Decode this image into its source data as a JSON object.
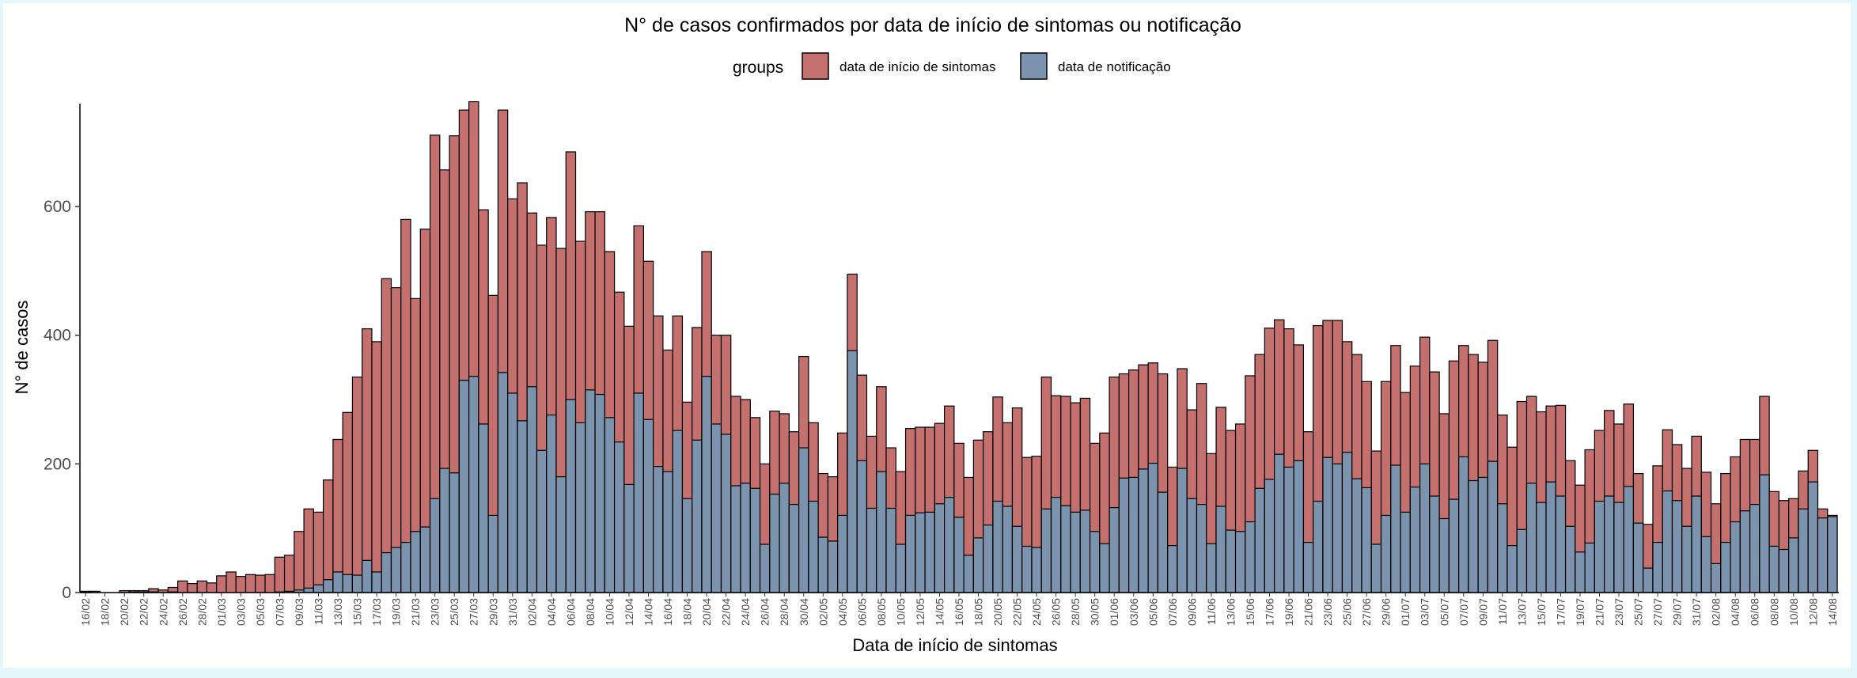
{
  "chart_data": {
    "type": "bar",
    "stacked": true,
    "title": "N° de casos confirmados por data de início de sintomas ou notificação",
    "xlabel": "Data de início de sintomas",
    "ylabel": "N° de casos",
    "ylim": [
      0,
      760
    ],
    "yticks": [
      0,
      200,
      400,
      600
    ],
    "grid": false,
    "legend": {
      "title": "groups",
      "position": "top",
      "entries": [
        {
          "label": "data de início de sintomas",
          "color": "#c3706f"
        },
        {
          "label": "data de notificação",
          "color": "#7b93ad"
        }
      ]
    },
    "start_date": "16/02",
    "categories": [
      "16/02",
      "17/02",
      "18/02",
      "19/02",
      "20/02",
      "21/02",
      "22/02",
      "23/02",
      "24/02",
      "25/02",
      "26/02",
      "27/02",
      "28/02",
      "29/02",
      "01/03",
      "02/03",
      "03/03",
      "04/03",
      "05/03",
      "06/03",
      "07/03",
      "08/03",
      "09/03",
      "10/03",
      "11/03",
      "12/03",
      "13/03",
      "14/03",
      "15/03",
      "16/03",
      "17/03",
      "18/03",
      "19/03",
      "20/03",
      "21/03",
      "22/03",
      "23/03",
      "24/03",
      "25/03",
      "26/03",
      "27/03",
      "28/03",
      "29/03",
      "30/03",
      "31/03",
      "01/04",
      "02/04",
      "03/04",
      "04/04",
      "05/04",
      "06/04",
      "07/04",
      "08/04",
      "09/04",
      "10/04",
      "11/04",
      "12/04",
      "13/04",
      "14/04",
      "15/04",
      "16/04",
      "17/04",
      "18/04",
      "19/04",
      "20/04",
      "21/04",
      "22/04",
      "23/04",
      "24/04",
      "25/04",
      "26/04",
      "27/04",
      "28/04",
      "29/04",
      "30/04",
      "01/05",
      "02/05",
      "03/05",
      "04/05",
      "05/05",
      "06/05",
      "07/05",
      "08/05",
      "09/05",
      "10/05",
      "11/05",
      "12/05",
      "13/05",
      "14/05",
      "15/05",
      "16/05",
      "17/05",
      "18/05",
      "19/05",
      "20/05",
      "21/05",
      "22/05",
      "23/05",
      "24/05",
      "25/05",
      "26/05",
      "27/05",
      "28/05",
      "29/05",
      "30/05",
      "31/05",
      "01/06",
      "02/06",
      "03/06",
      "04/06",
      "05/06",
      "06/06",
      "07/06",
      "08/06",
      "09/06",
      "10/06",
      "11/06",
      "12/06",
      "13/06",
      "14/06",
      "15/06",
      "16/06",
      "17/06",
      "18/06",
      "19/06",
      "20/06",
      "21/06",
      "22/06",
      "23/06",
      "24/06",
      "25/06",
      "26/06",
      "27/06",
      "28/06",
      "29/06",
      "30/06",
      "01/07",
      "02/07",
      "03/07",
      "04/07",
      "05/07",
      "06/07",
      "07/07",
      "08/07",
      "09/07",
      "10/07",
      "11/07",
      "12/07",
      "13/07",
      "14/07",
      "15/07",
      "16/07",
      "17/07",
      "18/07",
      "19/07",
      "20/07",
      "21/07",
      "22/07",
      "23/07",
      "24/07",
      "25/07",
      "26/07",
      "27/07",
      "28/07",
      "29/07",
      "30/07",
      "31/07",
      "01/08",
      "02/08",
      "03/08",
      "04/08",
      "05/08",
      "06/08",
      "07/08",
      "08/08",
      "09/08",
      "10/08",
      "11/08",
      "12/08",
      "13/08",
      "14/08"
    ],
    "series": [
      {
        "name": "data de início de sintomas",
        "color": "#c3706f",
        "values": [
          2,
          2,
          0,
          0,
          3,
          3,
          3,
          6,
          4,
          8,
          18,
          14,
          18,
          15,
          26,
          32,
          25,
          28,
          27,
          28,
          55,
          58,
          95,
          130,
          125,
          175,
          238,
          280,
          335,
          410,
          390,
          488,
          474,
          580,
          457,
          565,
          711,
          657,
          710,
          750,
          763,
          595,
          462,
          750,
          612,
          637,
          590,
          540,
          583,
          535,
          685,
          546,
          592,
          592,
          530,
          467,
          414,
          570,
          515,
          430,
          377,
          430,
          296,
          412,
          530,
          400,
          400,
          305,
          300,
          272,
          200,
          282,
          278,
          250,
          367,
          264,
          185,
          180,
          248,
          495,
          338,
          243,
          320,
          225,
          188,
          255,
          257,
          257,
          263,
          290,
          232,
          179,
          237,
          250,
          304,
          264,
          287,
          210,
          212,
          335,
          306,
          305,
          295,
          302,
          232,
          248,
          335,
          340,
          346,
          354,
          357,
          340,
          195,
          348,
          284,
          325,
          216,
          288,
          252,
          262,
          337,
          370,
          411,
          424,
          410,
          385,
          250,
          415,
          423,
          423,
          390,
          370,
          328,
          220,
          328,
          384,
          311,
          352,
          397,
          343,
          278,
          360,
          384,
          370,
          358,
          392,
          276,
          226,
          297,
          305,
          281,
          290,
          291,
          205,
          167,
          222,
          252,
          283,
          262,
          293,
          185,
          106,
          197,
          253,
          230,
          193,
          243,
          187,
          138,
          185,
          211,
          238,
          238,
          305,
          157,
          143,
          146,
          189,
          221,
          130,
          120
        ],
        "overlay_values": [
          1,
          0,
          0,
          0,
          0,
          1,
          1,
          1,
          0,
          1,
          0,
          0,
          0,
          0,
          0,
          0,
          0,
          0,
          0,
          0,
          1,
          2,
          4,
          7,
          12,
          20,
          32,
          28,
          27,
          50,
          32,
          62,
          70,
          78,
          95,
          102,
          146,
          193,
          186,
          330,
          336,
          262,
          120,
          342,
          310,
          267,
          320,
          221,
          276,
          180,
          300,
          264,
          315,
          308,
          272,
          234,
          168,
          310,
          269,
          196,
          188,
          252,
          146,
          237,
          336,
          262,
          246,
          166,
          170,
          162,
          75,
          153,
          170,
          137,
          225,
          142,
          86,
          80,
          120,
          376,
          205,
          131,
          188,
          131,
          75,
          120,
          124,
          125,
          138,
          148,
          117,
          58,
          85,
          105,
          142,
          134,
          103,
          72,
          70,
          130,
          148,
          135,
          125,
          128,
          95,
          76,
          132,
          178,
          179,
          192,
          201,
          156,
          73,
          193,
          146,
          137,
          76,
          134,
          97,
          95,
          110,
          162,
          176,
          215,
          195,
          205,
          78,
          142,
          210,
          200,
          218,
          177,
          163,
          75,
          120,
          198,
          125,
          164,
          200,
          150,
          115,
          145,
          211,
          174,
          179,
          204,
          138,
          73,
          98,
          170,
          140,
          172,
          150,
          103,
          63,
          77,
          142,
          150,
          140,
          165,
          108,
          38,
          78,
          158,
          143,
          103,
          150,
          87,
          45,
          78,
          110,
          127,
          137,
          183,
          72,
          67,
          85,
          130,
          172,
          116,
          118
        ]
      }
    ]
  }
}
